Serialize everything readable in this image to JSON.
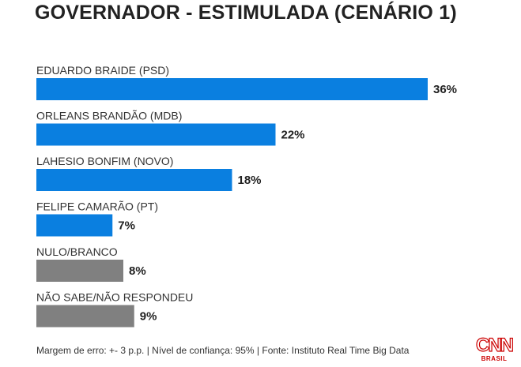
{
  "chart_data": {
    "type": "bar",
    "orientation": "horizontal",
    "title": "GOVERNADOR - ESTIMULADA (CENÁRIO 1)",
    "categories": [
      "EDUARDO BRAIDE (PSD)",
      "ORLEANS BRANDÃO (MDB)",
      "LAHESIO BONFIM (NOVO)",
      "FELIPE CAMARÃO (PT)",
      "NULO/BRANCO",
      "NÃO SABE/NÃO RESPONDEU"
    ],
    "values": [
      36,
      22,
      18,
      7,
      8,
      9
    ],
    "value_labels": [
      "36%",
      "22%",
      "18%",
      "7%",
      "8%",
      "9%"
    ],
    "bar_colors": [
      "#0a7fe0",
      "#0a7fe0",
      "#0a7fe0",
      "#0a7fe0",
      "#808080",
      "#808080"
    ],
    "unit": "%",
    "xlim": [
      0,
      36
    ],
    "xlabel": "",
    "ylabel": "",
    "grid": false
  },
  "footer": {
    "note": "Margem de erro: +- 3 p.p. | Nível de confiança: 95% | Fonte: Instituto Real Time Big Data"
  },
  "logo": {
    "mark": "CNN",
    "sub": "BRASIL",
    "color": "#cc0000"
  }
}
